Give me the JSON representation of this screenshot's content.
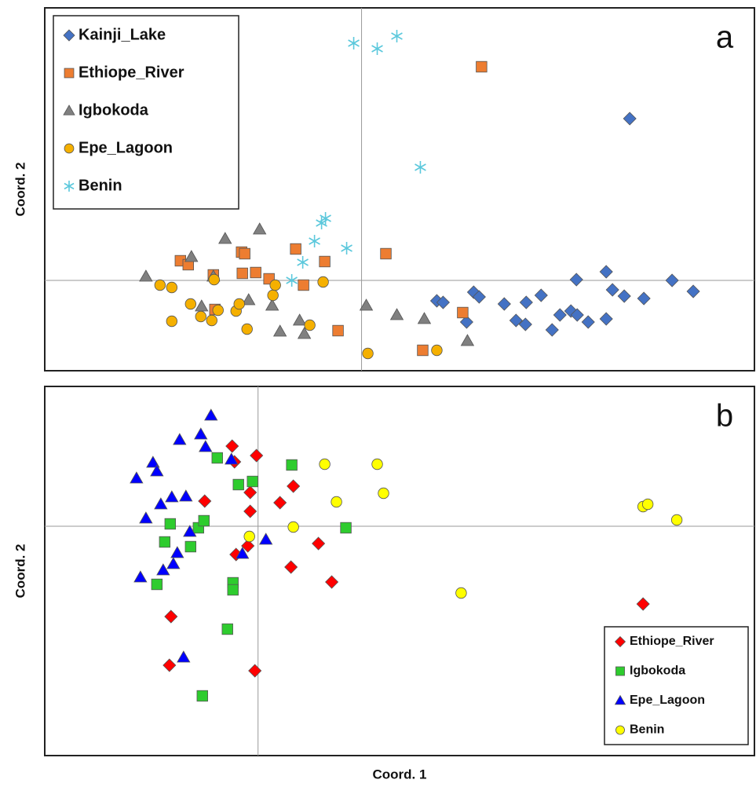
{
  "chart_data": [
    {
      "type": "scatter",
      "panel_label": "a",
      "y_label": "Coord. 2",
      "xlim": [
        -40.4,
        50.1
      ],
      "ylim": [
        -11.5,
        34.7
      ],
      "zero_lines": true,
      "legend": "upper left",
      "series": [
        {
          "name": "Kainji_Lake",
          "color": "#4472c4",
          "marker": "diamond",
          "x": [
            34.2,
            9.6,
            10.4,
            14.3,
            15.0,
            13.4,
            18.2,
            21.0,
            22.9,
            19.7,
            20.9,
            24.3,
            25.3,
            26.7,
            27.5,
            27.4,
            28.9,
            31.2,
            32.0,
            33.5,
            31.2,
            36.0,
            39.6,
            42.3
          ],
          "y": [
            20.6,
            -2.6,
            -2.8,
            -1.5,
            -2.1,
            -5.3,
            -3.0,
            -2.8,
            -1.9,
            -5.1,
            -5.6,
            -6.3,
            -4.4,
            -3.9,
            -4.4,
            0.1,
            -5.3,
            1.1,
            -1.2,
            -2.0,
            -4.9,
            -2.3,
            0.0,
            -1.4
          ]
        },
        {
          "name": "Ethiope_River",
          "color": "#ed7d31",
          "marker": "square",
          "x": [
            15.3,
            -23.1,
            -22.1,
            -18.9,
            -15.3,
            -14.9,
            -15.2,
            -13.5,
            -11.8,
            -8.4,
            -7.4,
            -4.7,
            -3.0,
            3.1,
            12.9,
            7.8,
            -18.7
          ],
          "y": [
            27.2,
            2.5,
            2.0,
            0.7,
            3.6,
            3.4,
            0.9,
            1.0,
            0.2,
            4.0,
            -0.6,
            2.4,
            -6.4,
            3.4,
            -4.1,
            -8.9,
            -3.7
          ]
        },
        {
          "name": "Igbokoda",
          "color": "#808080",
          "marker": "triangle",
          "x": [
            -27.5,
            -21.7,
            -17.4,
            -13.0,
            -18.9,
            -20.4,
            -14.4,
            -11.4,
            -10.4,
            -7.9,
            -7.3,
            0.6,
            4.5,
            8.0,
            13.5
          ],
          "y": [
            0.5,
            3.0,
            5.3,
            6.5,
            0.5,
            -3.3,
            -2.5,
            -3.2,
            -6.5,
            -5.1,
            -6.8,
            -3.2,
            -4.4,
            -4.9,
            -7.7
          ]
        },
        {
          "name": "Epe_Lagoon",
          "color": "#f5b000",
          "marker": "circle",
          "x": [
            -25.7,
            -24.2,
            -18.8,
            -21.8,
            -24.2,
            -20.5,
            -19.1,
            -18.3,
            -16.0,
            -15.6,
            -14.6,
            -11.3,
            -11.0,
            -6.6,
            -4.9,
            0.8,
            9.6
          ],
          "y": [
            -0.6,
            -0.9,
            0.1,
            -3.0,
            -5.2,
            -4.6,
            -5.1,
            -3.8,
            -3.9,
            -3.0,
            -6.2,
            -1.9,
            -0.6,
            -5.7,
            -0.2,
            -9.3,
            -8.9
          ]
        },
        {
          "name": "Benin",
          "color": "#5bc8dc",
          "marker": "asterisk",
          "x": [
            -1.0,
            2.0,
            4.5,
            7.5,
            -5.1,
            -4.6,
            -6.0,
            -1.9,
            -7.5,
            -8.9
          ],
          "y": [
            30.2,
            29.5,
            31.1,
            14.4,
            7.3,
            7.9,
            5.0,
            4.1,
            2.3,
            0.0
          ]
        }
      ]
    },
    {
      "type": "scatter",
      "panel_label": "b",
      "y_label": "Coord. 2",
      "x_label": "Coord. 1",
      "xlim": [
        -27.2,
        63.3
      ],
      "ylim": [
        -29.2,
        17.8
      ],
      "zero_lines": true,
      "legend": "lower right",
      "series": [
        {
          "name": "Ethiope_River",
          "color": "#ff0000",
          "marker": "diamond",
          "x": [
            -3.3,
            -0.2,
            -3.0,
            -6.8,
            -1.0,
            -1.0,
            4.5,
            2.8,
            -2.8,
            -1.3,
            7.7,
            4.2,
            9.4,
            -11.1,
            -11.3,
            -0.4,
            49.1
          ],
          "y": [
            10.2,
            9.0,
            8.2,
            3.2,
            4.3,
            1.9,
            5.1,
            3.0,
            -3.6,
            -2.5,
            -2.2,
            -5.2,
            -7.1,
            -11.5,
            -17.7,
            -18.4,
            -9.9
          ]
        },
        {
          "name": "Igbokoda",
          "color": "#2ecc2e",
          "marker": "square",
          "x": [
            -5.2,
            -2.5,
            -0.7,
            4.3,
            -11.2,
            -7.6,
            -6.9,
            -11.9,
            -8.6,
            11.2,
            -12.9,
            -3.2,
            -3.2,
            -3.9,
            -7.1
          ],
          "y": [
            8.7,
            5.3,
            5.7,
            7.8,
            0.3,
            -0.2,
            0.7,
            -2.0,
            -2.6,
            -0.2,
            -7.4,
            -7.2,
            -8.1,
            -13.1,
            -21.6
          ]
        },
        {
          "name": "Epe_Lagoon",
          "color": "#0000ff",
          "marker": "triangle",
          "x": [
            -6.0,
            -10.0,
            -7.3,
            -6.7,
            -3.4,
            -13.4,
            -12.9,
            -15.5,
            -11.0,
            -9.2,
            -12.4,
            -14.3,
            -8.7,
            -10.3,
            -10.8,
            -12.1,
            -15.0,
            -2.0,
            1.0,
            -9.5
          ],
          "y": [
            14.1,
            11.0,
            11.7,
            10.1,
            8.5,
            8.1,
            7.0,
            6.1,
            3.7,
            3.8,
            2.8,
            1.0,
            -0.7,
            -3.4,
            -4.8,
            -5.6,
            -6.5,
            -3.5,
            -1.7,
            -16.7
          ]
        },
        {
          "name": "Benin",
          "color": "#ffff00",
          "marker": "circle",
          "x": [
            8.5,
            15.2,
            10.0,
            16.0,
            4.5,
            -1.1,
            25.9,
            49.1,
            49.7,
            53.4
          ],
          "y": [
            7.9,
            7.9,
            3.1,
            4.2,
            -0.1,
            -1.3,
            -8.5,
            2.5,
            2.8,
            0.8
          ]
        }
      ]
    }
  ]
}
